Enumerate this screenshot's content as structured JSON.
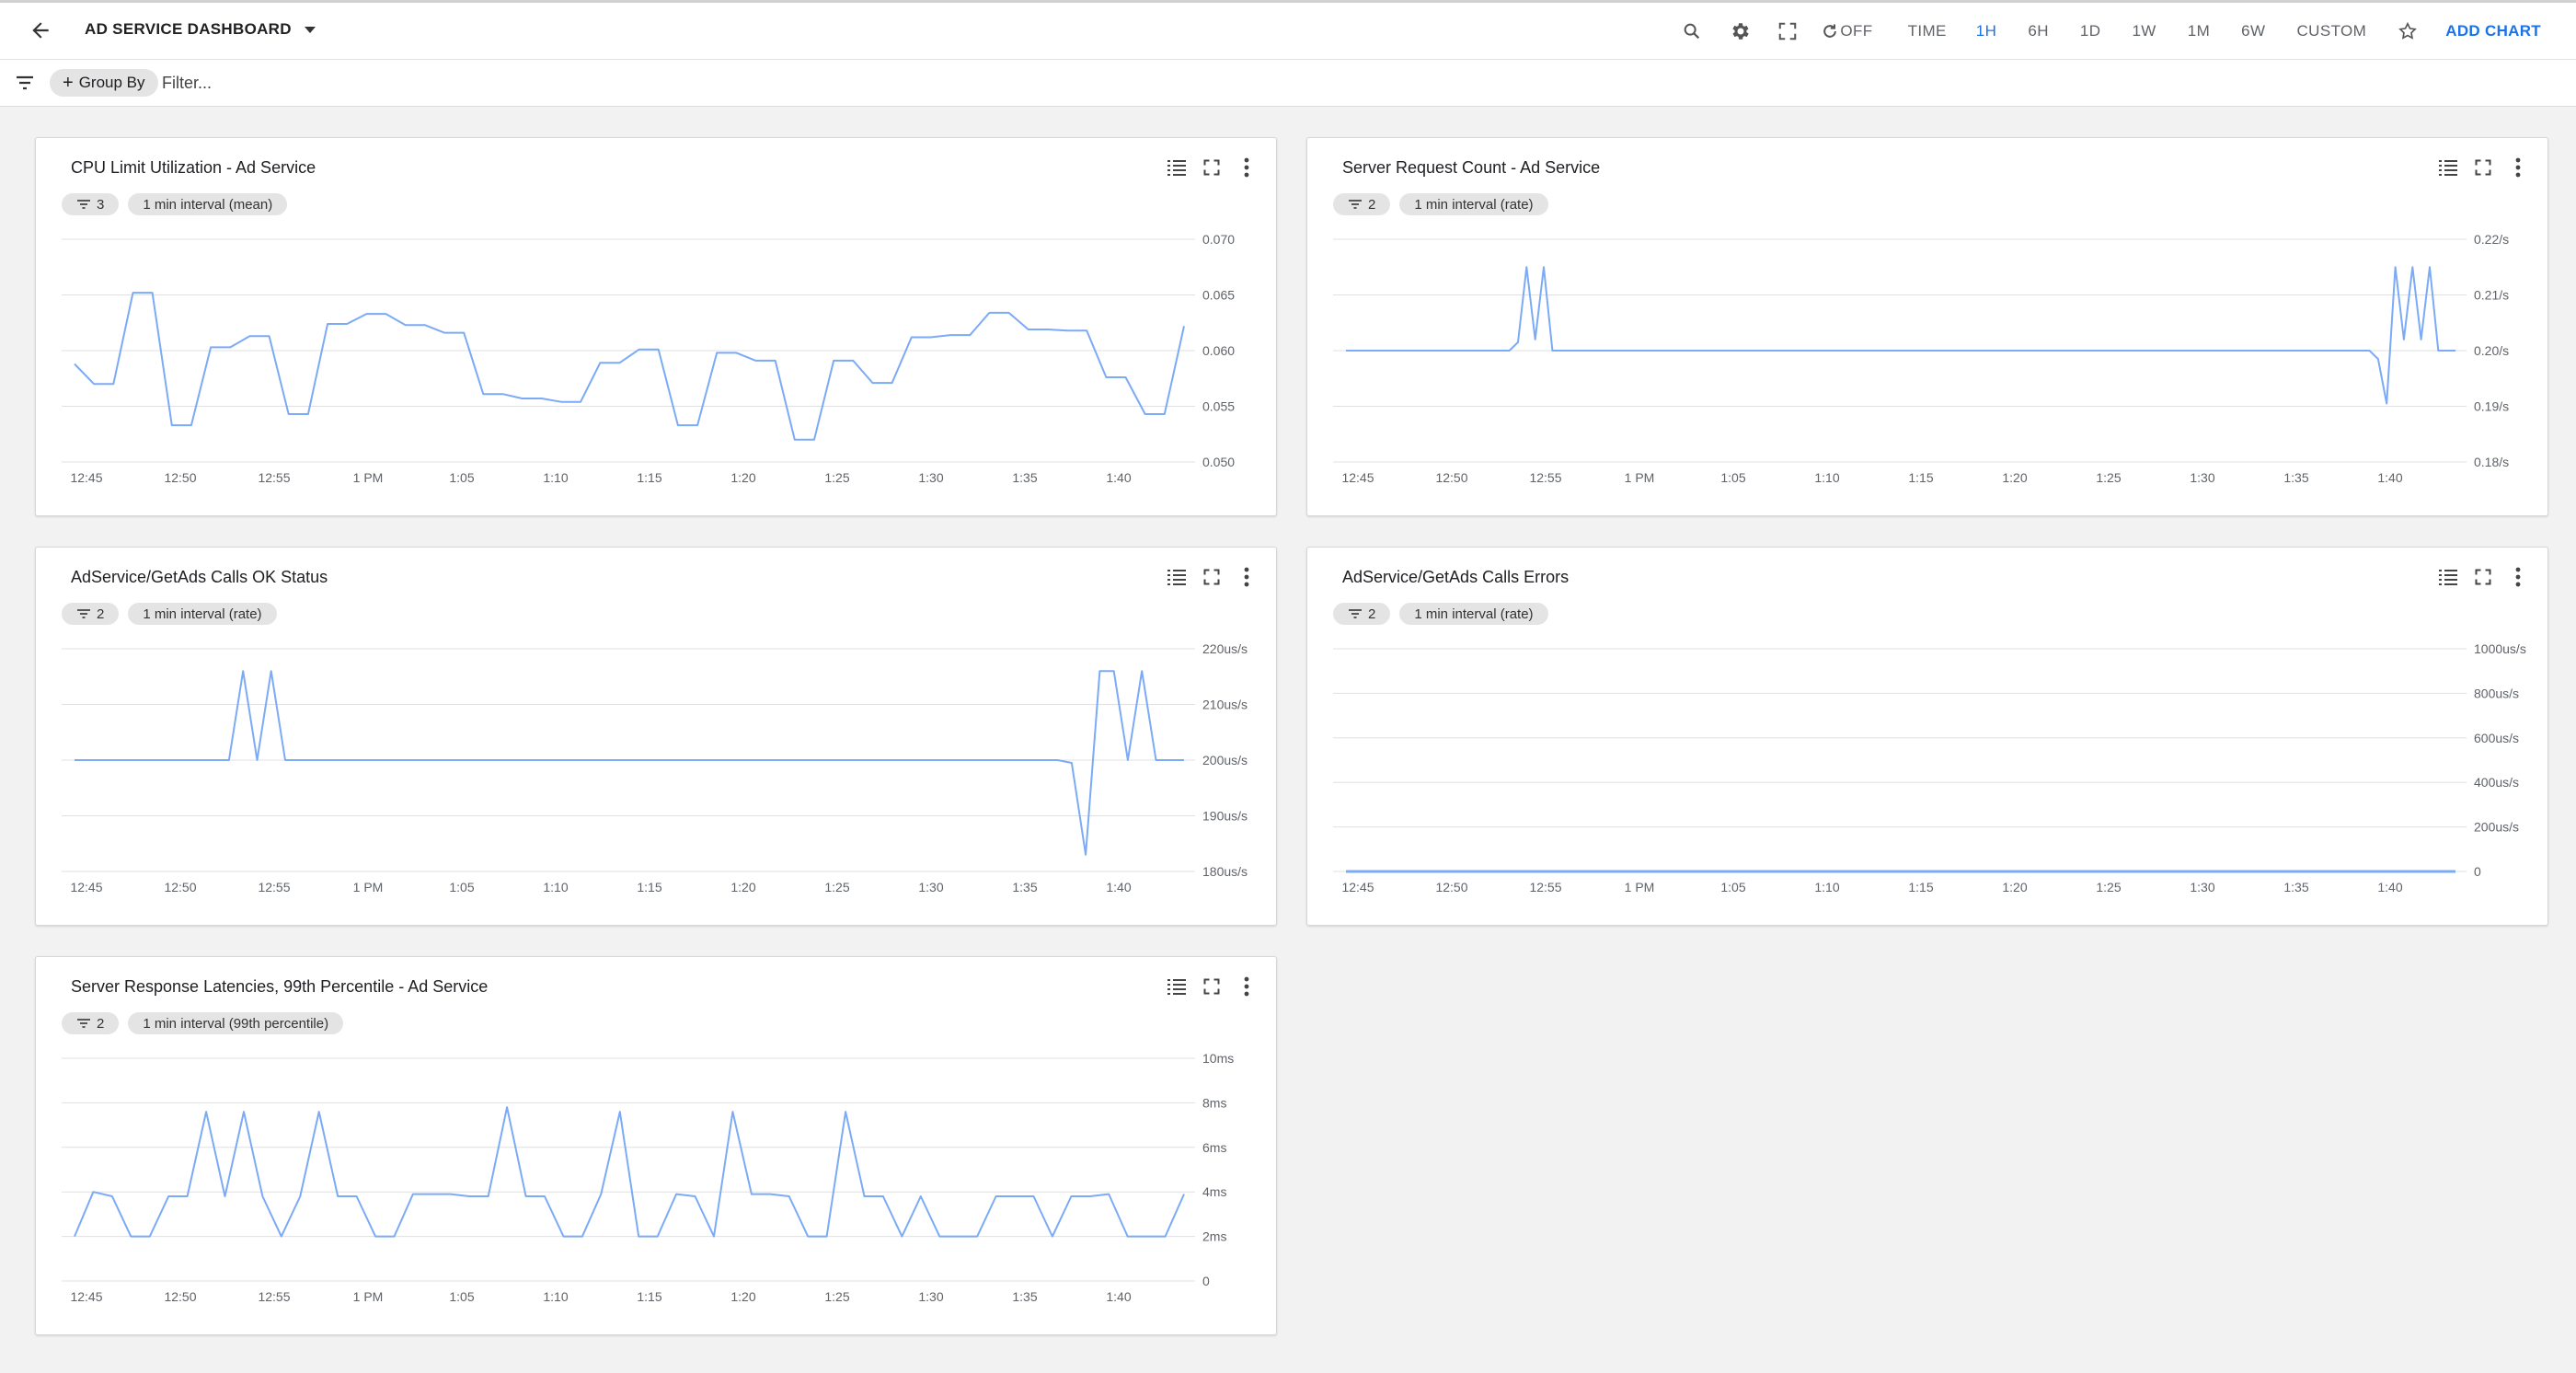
{
  "header": {
    "title": "AD SERVICE DASHBOARD",
    "refresh_label": "OFF",
    "time_label": "TIME",
    "ranges": [
      "1H",
      "6H",
      "1D",
      "1W",
      "1M",
      "6W",
      "CUSTOM"
    ],
    "active_range": "1H",
    "add_chart_label": "ADD CHART"
  },
  "filterbar": {
    "group_by_label": "Group By",
    "filter_placeholder": "Filter..."
  },
  "colors": {
    "line": "#7baaf7",
    "accent": "#1a73e8",
    "grid": "#e0e0e0",
    "chip_bg": "#e4e4e4"
  },
  "charts": [
    {
      "title": "CPU Limit Utilization - Ad Service",
      "filter_count": "3",
      "interval": "1 min interval (mean)"
    },
    {
      "title": "Server Request Count - Ad Service",
      "filter_count": "2",
      "interval": "1 min interval (rate)"
    },
    {
      "title": "AdService/GetAds Calls OK Status",
      "filter_count": "2",
      "interval": "1 min interval (rate)"
    },
    {
      "title": "AdService/GetAds Calls Errors",
      "filter_count": "2",
      "interval": "1 min interval (rate)"
    },
    {
      "title": "Server Response Latencies, 99th Percentile - Ad Service",
      "filter_count": "2",
      "interval": "1 min interval (99th percentile)"
    }
  ],
  "chart_data": [
    {
      "type": "line",
      "title": "CPU Limit Utilization - Ad Service",
      "x_ticks": [
        "12:45",
        "12:50",
        "12:55",
        "1 PM",
        "1:05",
        "1:10",
        "1:15",
        "1:20",
        "1:25",
        "1:30",
        "1:35",
        "1:40"
      ],
      "y_ticks": [
        "0.070",
        "0.065",
        "0.060",
        "0.055",
        "0.050"
      ],
      "ylim": [
        0.05,
        0.07
      ],
      "grid": true,
      "series": [
        {
          "values": [
            0.0588,
            0.057,
            0.057,
            0.0652,
            0.0652,
            0.0533,
            0.0533,
            0.0603,
            0.0603,
            0.0613,
            0.0613,
            0.0543,
            0.0543,
            0.0624,
            0.0624,
            0.0633,
            0.0633,
            0.0623,
            0.0623,
            0.0616,
            0.0616,
            0.0561,
            0.0561,
            0.0557,
            0.0557,
            0.0554,
            0.0554,
            0.0589,
            0.0589,
            0.0601,
            0.0601,
            0.0533,
            0.0533,
            0.0598,
            0.0598,
            0.0591,
            0.0591,
            0.052,
            0.052,
            0.0591,
            0.0591,
            0.0571,
            0.0571,
            0.0612,
            0.0612,
            0.0614,
            0.0614,
            0.0634,
            0.0634,
            0.0619,
            0.0619,
            0.0618,
            0.0618,
            0.0576,
            0.0576,
            0.0543,
            0.0543,
            0.0622
          ]
        }
      ]
    },
    {
      "type": "line",
      "title": "Server Request Count - Ad Service",
      "x_ticks": [
        "12:45",
        "12:50",
        "12:55",
        "1 PM",
        "1:05",
        "1:10",
        "1:15",
        "1:20",
        "1:25",
        "1:30",
        "1:35",
        "1:40"
      ],
      "y_ticks": [
        "0.22/s",
        "0.21/s",
        "0.20/s",
        "0.19/s",
        "0.18/s"
      ],
      "ylim": [
        0.18,
        0.22
      ],
      "grid": true,
      "series": [
        {
          "values": [
            0.2,
            0.2,
            0.2,
            0.2,
            0.2,
            0.2,
            0.2,
            0.2,
            0.2,
            0.2,
            0.2,
            0.2,
            0.2,
            0.2,
            0.2,
            0.2,
            0.2,
            0.2,
            0.2,
            0.2,
            0.2015,
            0.215,
            0.202,
            0.215,
            0.2,
            0.2,
            0.2,
            0.2,
            0.2,
            0.2,
            0.2,
            0.2,
            0.2,
            0.2,
            0.2,
            0.2,
            0.2,
            0.2,
            0.2,
            0.2,
            0.2,
            0.2,
            0.2,
            0.2,
            0.2,
            0.2,
            0.2,
            0.2,
            0.2,
            0.2,
            0.2,
            0.2,
            0.2,
            0.2,
            0.2,
            0.2,
            0.2,
            0.2,
            0.2,
            0.2,
            0.2,
            0.2,
            0.2,
            0.2,
            0.2,
            0.2,
            0.2,
            0.2,
            0.2,
            0.2,
            0.2,
            0.2,
            0.2,
            0.2,
            0.2,
            0.2,
            0.2,
            0.2,
            0.2,
            0.2,
            0.2,
            0.2,
            0.2,
            0.2,
            0.2,
            0.2,
            0.2,
            0.2,
            0.2,
            0.2,
            0.2,
            0.2,
            0.2,
            0.2,
            0.2,
            0.2,
            0.2,
            0.2,
            0.2,
            0.2,
            0.2,
            0.2,
            0.2,
            0.2,
            0.2,
            0.2,
            0.2,
            0.2,
            0.2,
            0.2,
            0.2,
            0.2,
            0.2,
            0.2,
            0.2,
            0.2,
            0.2,
            0.2,
            0.2,
            0.2,
            0.1985,
            0.1905,
            0.215,
            0.202,
            0.215,
            0.202,
            0.215,
            0.2,
            0.2,
            0.2
          ]
        }
      ]
    },
    {
      "type": "line",
      "title": "AdService/GetAds Calls OK Status",
      "x_ticks": [
        "12:45",
        "12:50",
        "12:55",
        "1 PM",
        "1:05",
        "1:10",
        "1:15",
        "1:20",
        "1:25",
        "1:30",
        "1:35",
        "1:40"
      ],
      "y_ticks": [
        "220us/s",
        "210us/s",
        "200us/s",
        "190us/s",
        "180us/s"
      ],
      "ylim": [
        180,
        220
      ],
      "grid": true,
      "series": [
        {
          "values": [
            200,
            200,
            200,
            200,
            200,
            200,
            200,
            200,
            200,
            200,
            200,
            200,
            216,
            200,
            216,
            200,
            200,
            200,
            200,
            200,
            200,
            200,
            200,
            200,
            200,
            200,
            200,
            200,
            200,
            200,
            200,
            200,
            200,
            200,
            200,
            200,
            200,
            200,
            200,
            200,
            200,
            200,
            200,
            200,
            200,
            200,
            200,
            200,
            200,
            200,
            200,
            200,
            200,
            200,
            200,
            200,
            200,
            200,
            200,
            200,
            200,
            200,
            200,
            200,
            200,
            200,
            200,
            200,
            200,
            200,
            200,
            199.5,
            183,
            216,
            216,
            200,
            216,
            200,
            200,
            200
          ]
        }
      ]
    },
    {
      "type": "line",
      "title": "AdService/GetAds Calls Errors",
      "x_ticks": [
        "12:45",
        "12:50",
        "12:55",
        "1 PM",
        "1:05",
        "1:10",
        "1:15",
        "1:20",
        "1:25",
        "1:30",
        "1:35",
        "1:40"
      ],
      "y_ticks": [
        "1000us/s",
        "800us/s",
        "600us/s",
        "400us/s",
        "200us/s",
        "0"
      ],
      "ylim": [
        0,
        1000
      ],
      "grid": true,
      "series": [
        {
          "values": [
            0,
            0,
            0,
            0,
            0,
            0,
            0,
            0,
            0,
            0,
            0,
            0
          ]
        }
      ]
    },
    {
      "type": "line",
      "title": "Server Response Latencies, 99th Percentile - Ad Service",
      "x_ticks": [
        "12:45",
        "12:50",
        "12:55",
        "1 PM",
        "1:05",
        "1:10",
        "1:15",
        "1:20",
        "1:25",
        "1:30",
        "1:35",
        "1:40"
      ],
      "y_ticks": [
        "10ms",
        "8ms",
        "6ms",
        "4ms",
        "2ms",
        "0"
      ],
      "ylim": [
        0,
        10
      ],
      "grid": true,
      "series": [
        {
          "values": [
            2,
            4,
            3.8,
            2,
            2,
            3.8,
            3.8,
            7.6,
            3.8,
            7.6,
            3.8,
            2,
            3.8,
            7.6,
            3.8,
            3.8,
            2,
            2,
            3.9,
            3.9,
            3.9,
            3.8,
            3.8,
            7.8,
            3.8,
            3.8,
            2,
            2,
            3.9,
            7.6,
            2,
            2,
            3.9,
            3.8,
            2,
            7.6,
            3.9,
            3.9,
            3.8,
            2,
            2,
            7.6,
            3.8,
            3.8,
            2,
            3.8,
            2,
            2,
            2,
            3.8,
            3.8,
            3.8,
            2,
            3.8,
            3.8,
            3.9,
            2,
            2,
            2,
            3.9
          ]
        }
      ]
    }
  ]
}
